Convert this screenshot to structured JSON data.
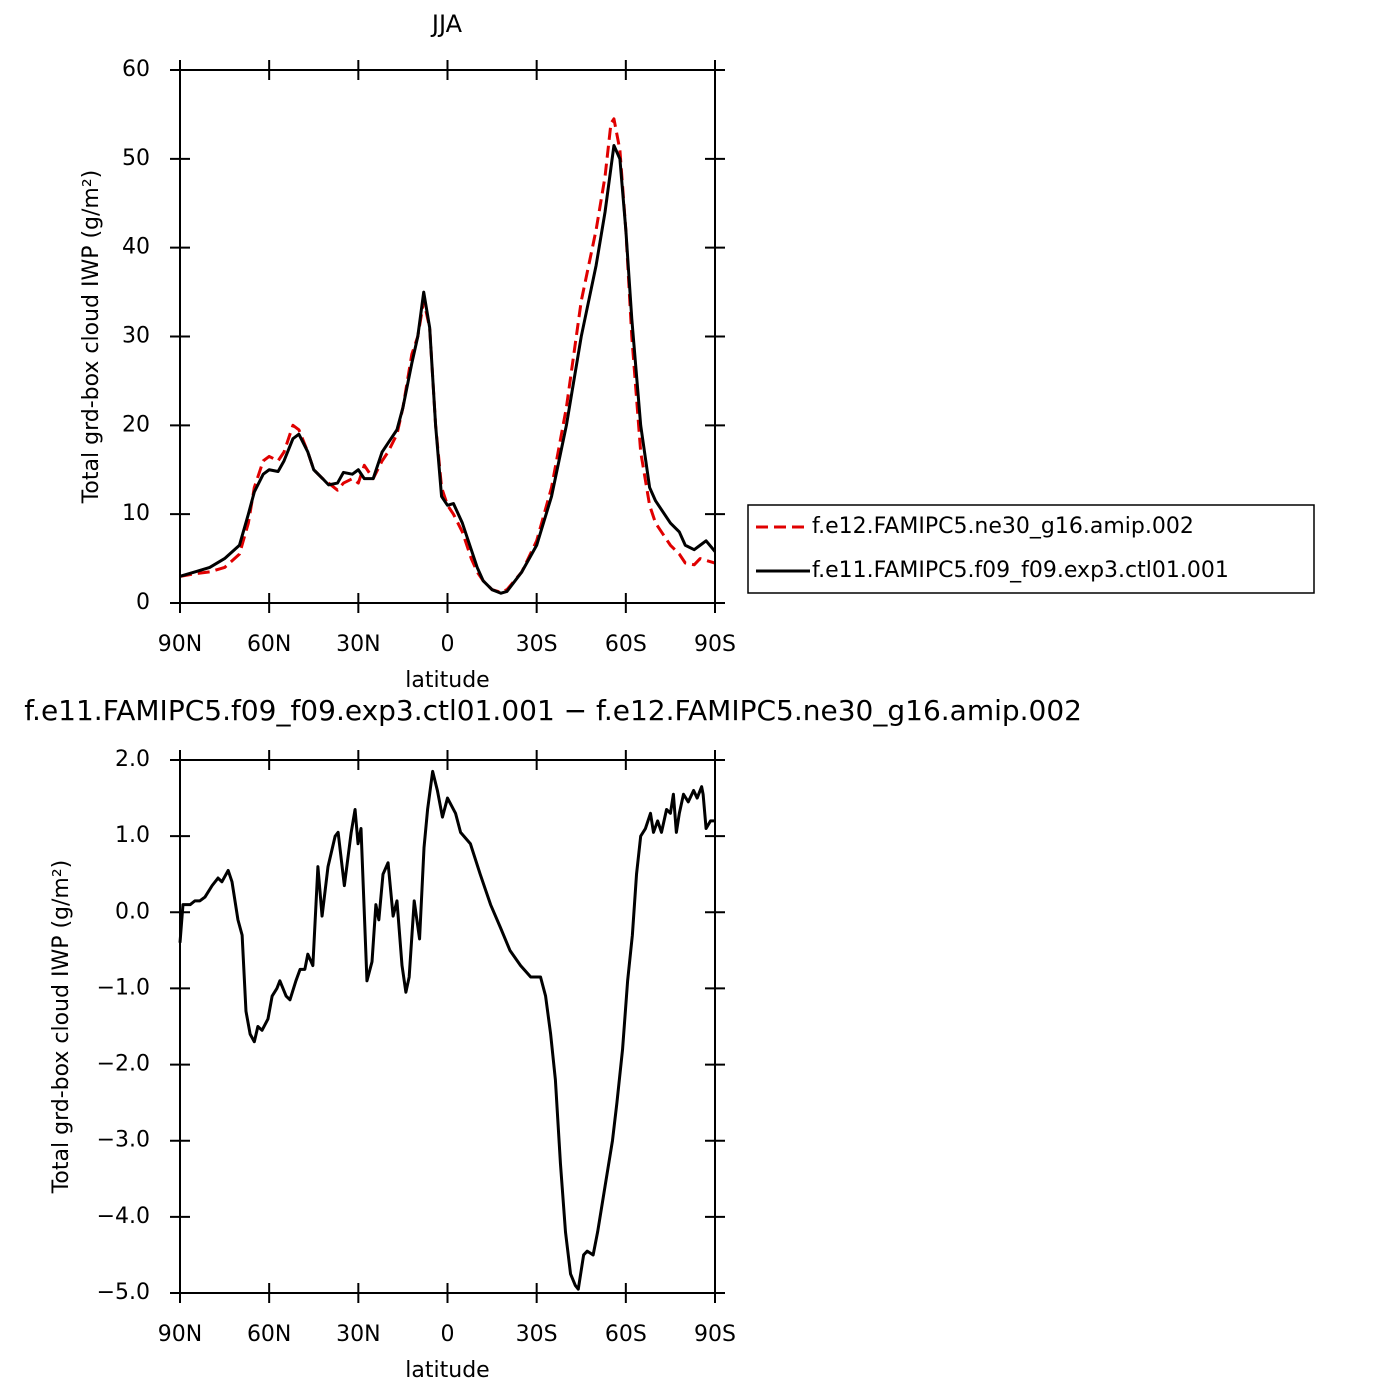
{
  "chart_data": [
    {
      "type": "line",
      "title": "JJA",
      "xlabel": "latitude",
      "ylabel": "Total grd-box cloud IWP (g/m²)",
      "x": [
        90,
        85,
        80,
        75,
        70,
        67,
        65,
        62,
        60,
        57,
        55,
        52,
        50,
        47,
        45,
        42,
        40,
        37,
        35,
        32,
        30,
        28,
        25,
        22,
        20,
        17,
        15,
        12,
        10,
        8,
        6,
        4,
        2,
        0,
        -2,
        -5,
        -8,
        -10,
        -12,
        -15,
        -18,
        -20,
        -25,
        -30,
        -35,
        -40,
        -45,
        -50,
        -53,
        -55,
        -56,
        -58,
        -60,
        -62,
        -65,
        -68,
        -70,
        -75,
        -78,
        -80,
        -83,
        -85,
        -87,
        -90
      ],
      "series": [
        {
          "name": "f.e12.FAMIPC5.ne30_g16.amip.002",
          "color": "#e00000",
          "line_style": "dashed",
          "values": [
            3,
            3.3,
            3.5,
            4,
            5.5,
            9,
            13,
            16,
            16.5,
            16,
            17,
            20,
            19.5,
            17,
            15,
            14,
            13.5,
            12.7,
            13.5,
            14,
            13.5,
            15.5,
            14,
            16,
            17,
            19,
            22,
            28,
            30,
            34,
            31,
            20,
            13,
            11,
            10,
            8,
            5,
            3.5,
            2.5,
            1.5,
            1.2,
            1.5,
            3.5,
            7,
            13,
            22,
            34,
            42,
            48,
            54,
            54.5,
            51,
            42,
            30,
            17,
            11,
            9,
            6.5,
            5.5,
            4.5,
            4.3,
            5,
            4.8,
            4.5
          ]
        },
        {
          "name": "f.e11.FAMIPC5.f09_f09.exp3.ctl01.001",
          "color": "#000000",
          "line_style": "solid",
          "values": [
            3,
            3.5,
            4,
            5,
            6.5,
            10,
            12.5,
            14.5,
            15,
            14.8,
            16,
            18.5,
            19,
            17,
            15,
            14,
            13.3,
            13.5,
            14.7,
            14.5,
            15,
            14,
            14,
            17,
            18,
            19.5,
            22,
            27,
            30,
            35,
            31,
            20,
            12,
            11,
            11.2,
            9,
            6,
            4,
            2.5,
            1.5,
            1.1,
            1.3,
            3.5,
            6.5,
            12,
            20,
            30,
            38,
            44,
            49,
            51.5,
            50,
            42,
            32,
            20,
            13,
            11.5,
            9,
            8,
            6.5,
            6,
            6.5,
            7,
            5.8
          ]
        }
      ],
      "xlim": [
        90,
        -90
      ],
      "xticks": [
        {
          "value": 90,
          "label": "90N"
        },
        {
          "value": 60,
          "label": "60N"
        },
        {
          "value": 30,
          "label": "30N"
        },
        0,
        {
          "value": -30,
          "label": "30S"
        },
        {
          "value": -60,
          "label": "60S"
        },
        {
          "value": -90,
          "label": "90S"
        }
      ],
      "ylim": [
        0,
        60
      ],
      "yticks": [
        0,
        10,
        20,
        30,
        40,
        50,
        60
      ],
      "legend": "right"
    },
    {
      "type": "line",
      "title": "f.e11.FAMIPC5.f09_f09.exp3.ctl01.001 − f.e12.FAMIPC5.ne30_g16.amip.002",
      "xlabel": "latitude",
      "ylabel": "Total grd-box cloud IWP (g/m²)",
      "color": "#000000",
      "x": [
        90,
        89,
        86.6,
        85,
        83.3,
        81.6,
        79.2,
        77.2,
        75.9,
        73.8,
        72.5,
        70.5,
        69.1,
        67.8,
        66.4,
        65,
        63.8,
        62.4,
        60.4,
        59,
        57.4,
        56.4,
        54.3,
        53,
        51,
        49.6,
        48,
        47,
        45.3,
        43.6,
        42.2,
        40.2,
        37.8,
        36.8,
        34.7,
        32.4,
        31.1,
        30.1,
        29.1,
        27.1,
        25.4,
        24.1,
        23.1,
        21.7,
        20,
        18.3,
        17,
        15.3,
        14,
        12.9,
        11.2,
        9.4,
        7.9,
        6.7,
        5,
        3.4,
        1.7,
        0,
        -2.7,
        -4.4,
        -7.7,
        -11,
        -14.5,
        -17.8,
        -21,
        -24.6,
        -28,
        -31.3,
        -33,
        -34.7,
        -36.3,
        -38,
        -39.7,
        -41.4,
        -43,
        -44,
        -45.8,
        -47,
        -49,
        -50.5,
        -53,
        -55.5,
        -57,
        -58.9,
        -60.6,
        -62.2,
        -63.6,
        -65,
        -66.6,
        -68.3,
        -69.3,
        -70.7,
        -72,
        -73.7,
        -75,
        -76,
        -77,
        -78,
        -79.4,
        -81,
        -82.8,
        -84,
        -85.5,
        -86,
        -87,
        -88.5,
        -90
      ],
      "values": [
        -0.4,
        0.1,
        0.1,
        0.15,
        0.15,
        0.2,
        0.35,
        0.45,
        0.4,
        0.55,
        0.4,
        -0.1,
        -0.3,
        -1.3,
        -1.6,
        -1.7,
        -1.5,
        -1.55,
        -1.4,
        -1.1,
        -1.0,
        -0.9,
        -1.1,
        -1.15,
        -0.9,
        -0.75,
        -0.75,
        -0.55,
        -0.7,
        0.6,
        -0.05,
        0.6,
        1.0,
        1.05,
        0.35,
        1.05,
        1.35,
        0.9,
        1.1,
        -0.9,
        -0.65,
        0.1,
        -0.1,
        0.5,
        0.65,
        -0.05,
        0.15,
        -0.7,
        -1.05,
        -0.85,
        0.15,
        -0.35,
        0.85,
        1.35,
        1.85,
        1.6,
        1.25,
        1.5,
        1.3,
        1.05,
        0.9,
        0.5,
        0.1,
        -0.2,
        -0.5,
        -0.7,
        -0.85,
        -0.85,
        -1.1,
        -1.6,
        -2.2,
        -3.3,
        -4.2,
        -4.75,
        -4.9,
        -4.95,
        -4.5,
        -4.45,
        -4.5,
        -4.2,
        -3.6,
        -3.0,
        -2.5,
        -1.8,
        -0.9,
        -0.3,
        0.5,
        1.0,
        1.1,
        1.3,
        1.05,
        1.2,
        1.05,
        1.35,
        1.3,
        1.55,
        1.05,
        1.3,
        1.55,
        1.45,
        1.6,
        1.5,
        1.65,
        1.55,
        1.1,
        1.2,
        1.2
      ],
      "xlim": [
        90,
        -90
      ],
      "xticks": [
        {
          "value": 90,
          "label": "90N"
        },
        {
          "value": 60,
          "label": "60N"
        },
        {
          "value": 30,
          "label": "30N"
        },
        0,
        {
          "value": -30,
          "label": "30S"
        },
        {
          "value": -60,
          "label": "60S"
        },
        {
          "value": -90,
          "label": "90S"
        }
      ],
      "ylim": [
        -5,
        2
      ],
      "yticks": [
        {
          "value": -5,
          "label": "−5.0"
        },
        {
          "value": -4,
          "label": "−4.0"
        },
        {
          "value": -3,
          "label": "−3.0"
        },
        {
          "value": -2,
          "label": "−2.0"
        },
        {
          "value": -1,
          "label": "−1.0"
        },
        {
          "value": 0,
          "label": "0.0"
        },
        {
          "value": 1,
          "label": "1.0"
        },
        {
          "value": 2,
          "label": "2.0"
        }
      ]
    }
  ]
}
